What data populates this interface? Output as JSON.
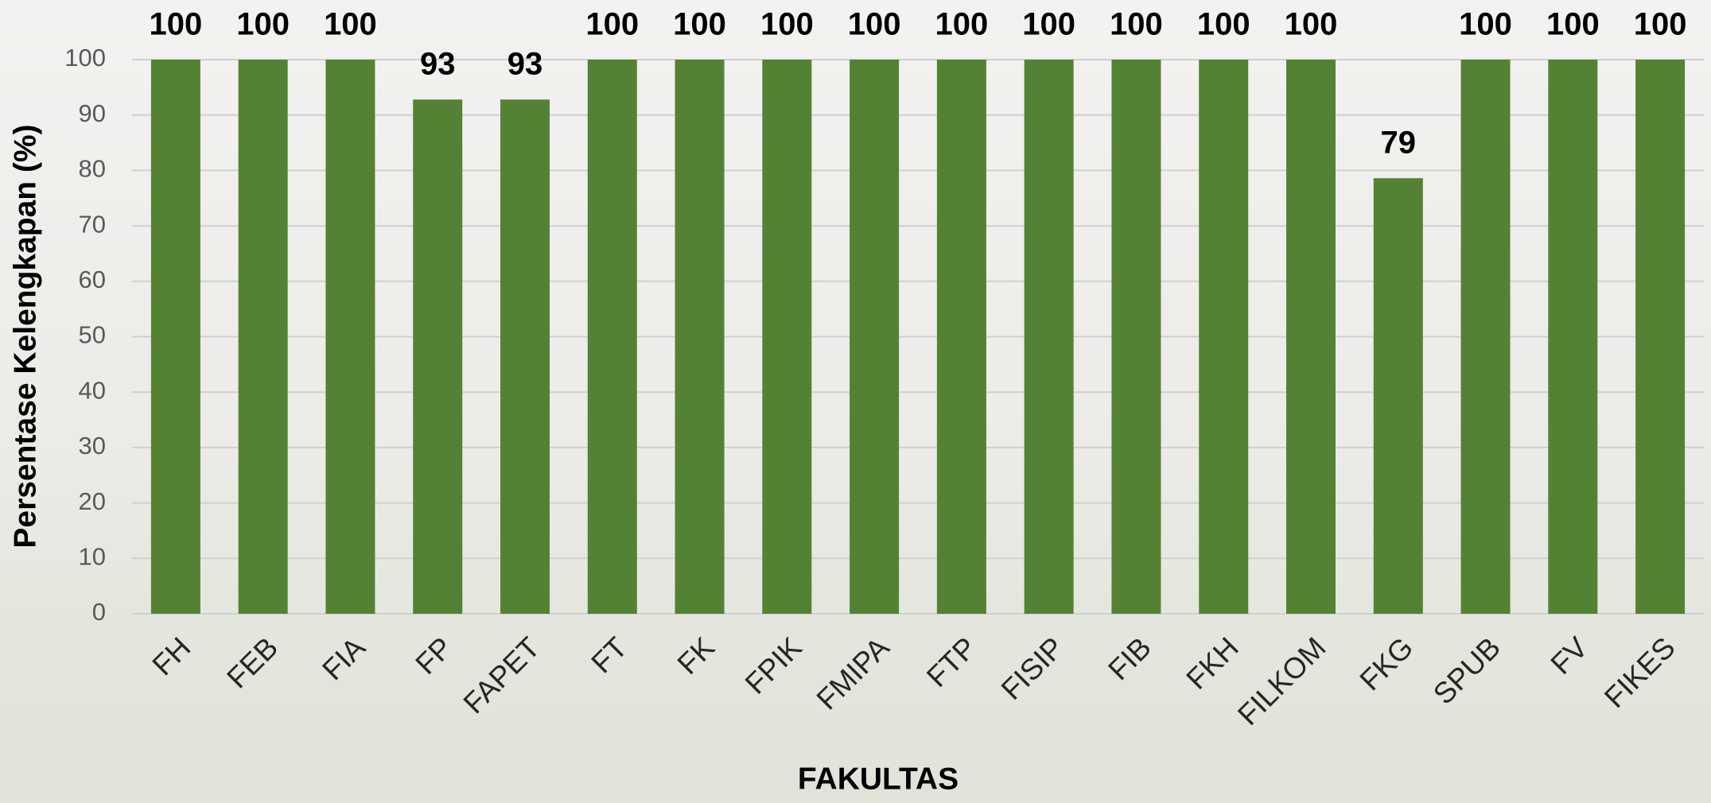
{
  "chart_data": {
    "type": "bar",
    "y_label": "Persentase Kelengkapan (%)",
    "x_label": "FAKULTAS",
    "categories": [
      "FH",
      "FEB",
      "FIA",
      "FP",
      "FAPET",
      "FT",
      "FK",
      "FPIK",
      "FMIPA",
      "FTP",
      "FISIP",
      "FIB",
      "FKH",
      "FILKOM",
      "FKG",
      "SPUB",
      "FV",
      "FIKES"
    ],
    "values": [
      100,
      100,
      100,
      92.8,
      92.8,
      100,
      100,
      100,
      100,
      100,
      100,
      100,
      100,
      100,
      78.6,
      100,
      100,
      100
    ],
    "value_labels": [
      "100",
      "100",
      "100",
      "93",
      "93",
      "100",
      "100",
      "100",
      "100",
      "100",
      "100",
      "100",
      "100",
      "100",
      "79",
      "100",
      "100",
      "100"
    ],
    "color": "#548235",
    "ylim": [
      0,
      100
    ],
    "yticks": [
      0,
      10,
      20,
      30,
      40,
      50,
      60,
      70,
      80,
      90,
      100
    ],
    "grid": true
  }
}
